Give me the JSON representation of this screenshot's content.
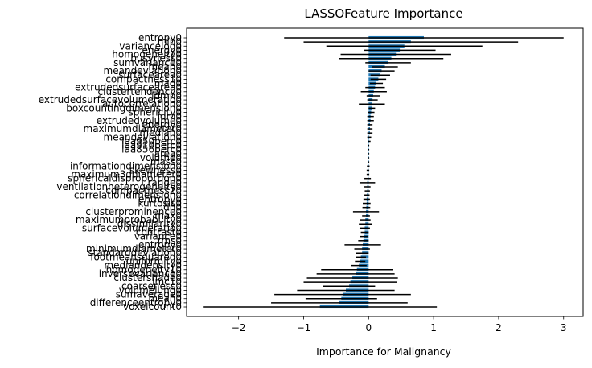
{
  "chart_data": {
    "type": "bar",
    "orientation": "horizontal",
    "title": "LASSOFeature Importance",
    "xlabel": "Importance for Malignancy",
    "ylabel": "",
    "xlim": [
      -2.8,
      3.3
    ],
    "xticks": [
      -2,
      -1,
      0,
      1,
      2,
      3
    ],
    "grid": false,
    "bar_color": "#1f77b4",
    "error_color": "#000000",
    "categories": [
      "entropy0",
      "min0",
      "variancelog0",
      "energy0",
      "homogeneity0",
      "busyness0",
      "sumvariance0",
      "mean0",
      "meandeviation0",
      "surfacearea0",
      "compactness10",
      "mad0",
      "extrudedsurfacearea0",
      "clustertendency0",
      "idmn0",
      "extrudedsurfacevolumeratio0",
      "autocorrelation0",
      "boxcountingdimension0",
      "sphericity0",
      "idm0",
      "extrudedvolume0",
      "energy0",
      "maximumdiameter0",
      "median0",
      "meandeviation0",
      "laa950perc0",
      "laa910perc0",
      "laa856perc0",
      "area0",
      "volume0",
      "mass0",
      "informationdimension0",
      "skewness0",
      "maximum3ddiameter0",
      "sphericaldisproportion0",
      "range0",
      "ventilationheterogeneity0",
      "compactness20",
      "correlationdimension0",
      "entropy0",
      "kurtosis0",
      "idn0",
      "clusterprominence0",
      "max0",
      "maximumprobability0",
      "dissimilarity0",
      "surfacevolumeratio0",
      "contrast0",
      "variance0",
      "rms0",
      "entropy0",
      "minimumdiameter0",
      "standarddeviation0",
      "footmeansquared0",
      "uniformity0",
      "mediandensity0",
      "homogeneity10",
      "inversevariance0",
      "clustershade0",
      "imc10",
      "coarseness0",
      "volumelung0",
      "sumaverage0",
      "mean0",
      "differenceentropy0",
      "voxelcount0"
    ],
    "values": [
      0.85,
      0.65,
      0.55,
      0.48,
      0.42,
      0.35,
      0.3,
      0.25,
      0.2,
      0.18,
      0.15,
      0.12,
      0.1,
      0.08,
      0.07,
      0.06,
      0.05,
      0.05,
      0.04,
      0.03,
      0.03,
      0.02,
      0.02,
      0.02,
      0.01,
      0.01,
      0.0,
      0.0,
      0.0,
      0.0,
      0.0,
      -0.005,
      -0.01,
      -0.01,
      -0.015,
      -0.02,
      -0.02,
      -0.02,
      -0.025,
      -0.03,
      -0.03,
      -0.035,
      -0.04,
      -0.04,
      -0.05,
      -0.05,
      -0.06,
      -0.06,
      -0.07,
      -0.08,
      -0.09,
      -0.1,
      -0.1,
      -0.12,
      -0.13,
      -0.15,
      -0.18,
      -0.2,
      -0.25,
      -0.28,
      -0.3,
      -0.35,
      -0.4,
      -0.42,
      -0.45,
      -0.75
    ],
    "errors": [
      2.15,
      1.65,
      1.2,
      0.55,
      0.85,
      0.8,
      0.35,
      0.2,
      0.2,
      0.15,
      0.12,
      0.1,
      0.15,
      0.2,
      0.1,
      0.08,
      0.2,
      0.05,
      0.05,
      0.05,
      0.05,
      0.04,
      0.04,
      0.04,
      0.03,
      0.02,
      0.01,
      0.01,
      0.01,
      0.01,
      0.01,
      0.02,
      0.02,
      0.02,
      0.05,
      0.12,
      0.05,
      0.04,
      0.04,
      0.05,
      0.06,
      0.06,
      0.2,
      0.06,
      0.08,
      0.1,
      0.08,
      0.06,
      0.06,
      0.08,
      0.28,
      0.12,
      0.1,
      0.08,
      0.08,
      0.12,
      0.55,
      0.6,
      0.7,
      0.72,
      0.4,
      0.75,
      1.05,
      0.55,
      1.05,
      1.8
    ]
  }
}
